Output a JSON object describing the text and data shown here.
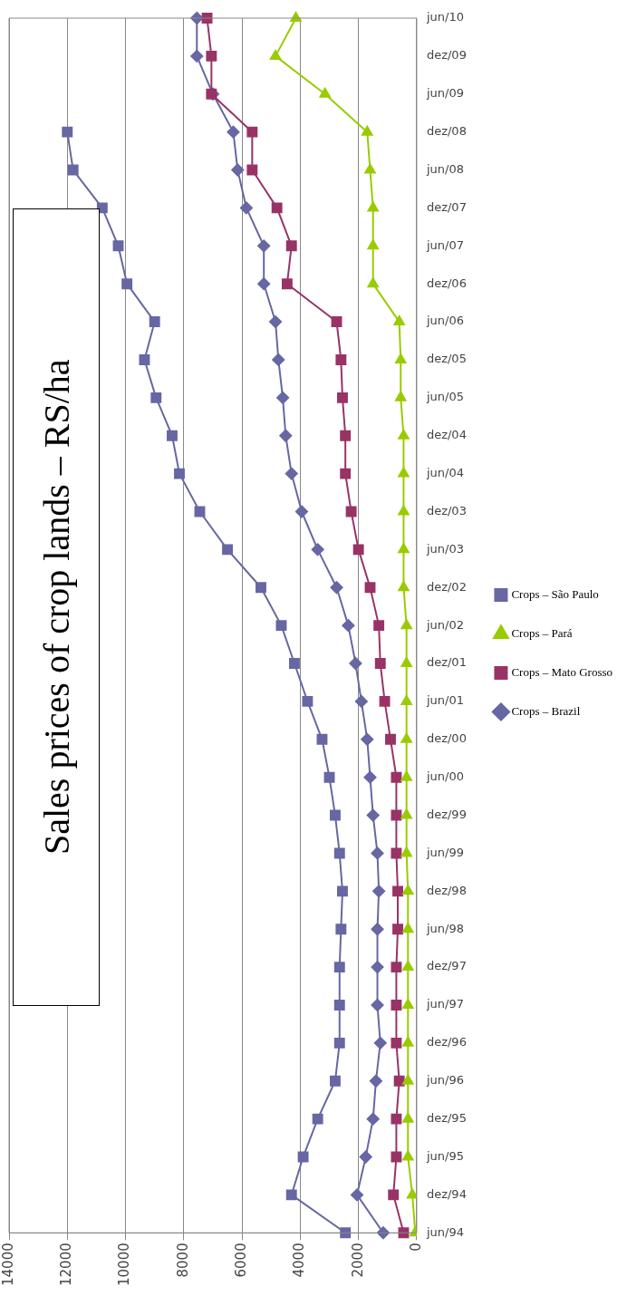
{
  "chart_data": {
    "type": "line",
    "title": "Sales prices of crop lands – RS/ha",
    "orientation": "horizontal",
    "categories": [
      "jun/10",
      "dez/09",
      "jun/09",
      "dez/08",
      "jun/08",
      "dez/07",
      "jun/07",
      "dez/06",
      "jun/06",
      "dez/05",
      "jun/05",
      "dez/04",
      "jun/04",
      "dez/03",
      "jun/03",
      "dez/02",
      "jun/02",
      "dez/01",
      "jun/01",
      "dez/00",
      "jun/00",
      "dez/99",
      "jun/99",
      "dez/98",
      "jun/98",
      "dez/97",
      "jun/97",
      "dez/96",
      "jun/96",
      "dez/95",
      "jun/95",
      "dez/94",
      "jun/94"
    ],
    "series": [
      {
        "name": "Crops – Brazil",
        "color": "#6667a3",
        "marker": "diamond",
        "values": [
          7550,
          7550,
          7000,
          6300,
          6150,
          5850,
          5250,
          5250,
          4850,
          4750,
          4600,
          4500,
          4300,
          3950,
          3400,
          2750,
          2350,
          2100,
          1900,
          1700,
          1600,
          1500,
          1350,
          1300,
          1350,
          1350,
          1350,
          1250,
          1400,
          1500,
          1750,
          2050,
          1150
        ]
      },
      {
        "name": "Crops – Mato Grosso",
        "color": "#993366",
        "marker": "square",
        "values": [
          7200,
          7050,
          7050,
          5650,
          5650,
          4800,
          4300,
          4450,
          2750,
          2600,
          2550,
          2450,
          2450,
          2250,
          2000,
          1600,
          1300,
          1250,
          1100,
          900,
          700,
          700,
          700,
          650,
          650,
          700,
          700,
          700,
          600,
          700,
          700,
          800,
          450
        ]
      },
      {
        "name": "Crops – Pará",
        "color": "#99cc00",
        "marker": "triangle",
        "values": [
          4150,
          4850,
          3150,
          1700,
          1600,
          1500,
          1500,
          1500,
          600,
          550,
          550,
          450,
          450,
          450,
          450,
          450,
          350,
          350,
          350,
          350,
          350,
          350,
          350,
          300,
          300,
          300,
          300,
          300,
          300,
          300,
          300,
          150,
          50
        ]
      },
      {
        "name": "Crops – São Paulo",
        "color": "#6667a3",
        "marker": "square",
        "values": [
          null,
          null,
          null,
          12000,
          11800,
          10800,
          10250,
          9950,
          9000,
          9350,
          8950,
          8400,
          8150,
          7450,
          6500,
          5350,
          4650,
          4200,
          3750,
          3250,
          3000,
          2800,
          2650,
          2550,
          2600,
          2650,
          2650,
          2650,
          2800,
          3400,
          3900,
          4300,
          2450
        ]
      }
    ],
    "xlim": [
      14000,
      0
    ],
    "xticks": [
      0,
      2000,
      4000,
      6000,
      8000,
      10000,
      12000,
      14000
    ],
    "grid": "x",
    "legend": "right"
  }
}
